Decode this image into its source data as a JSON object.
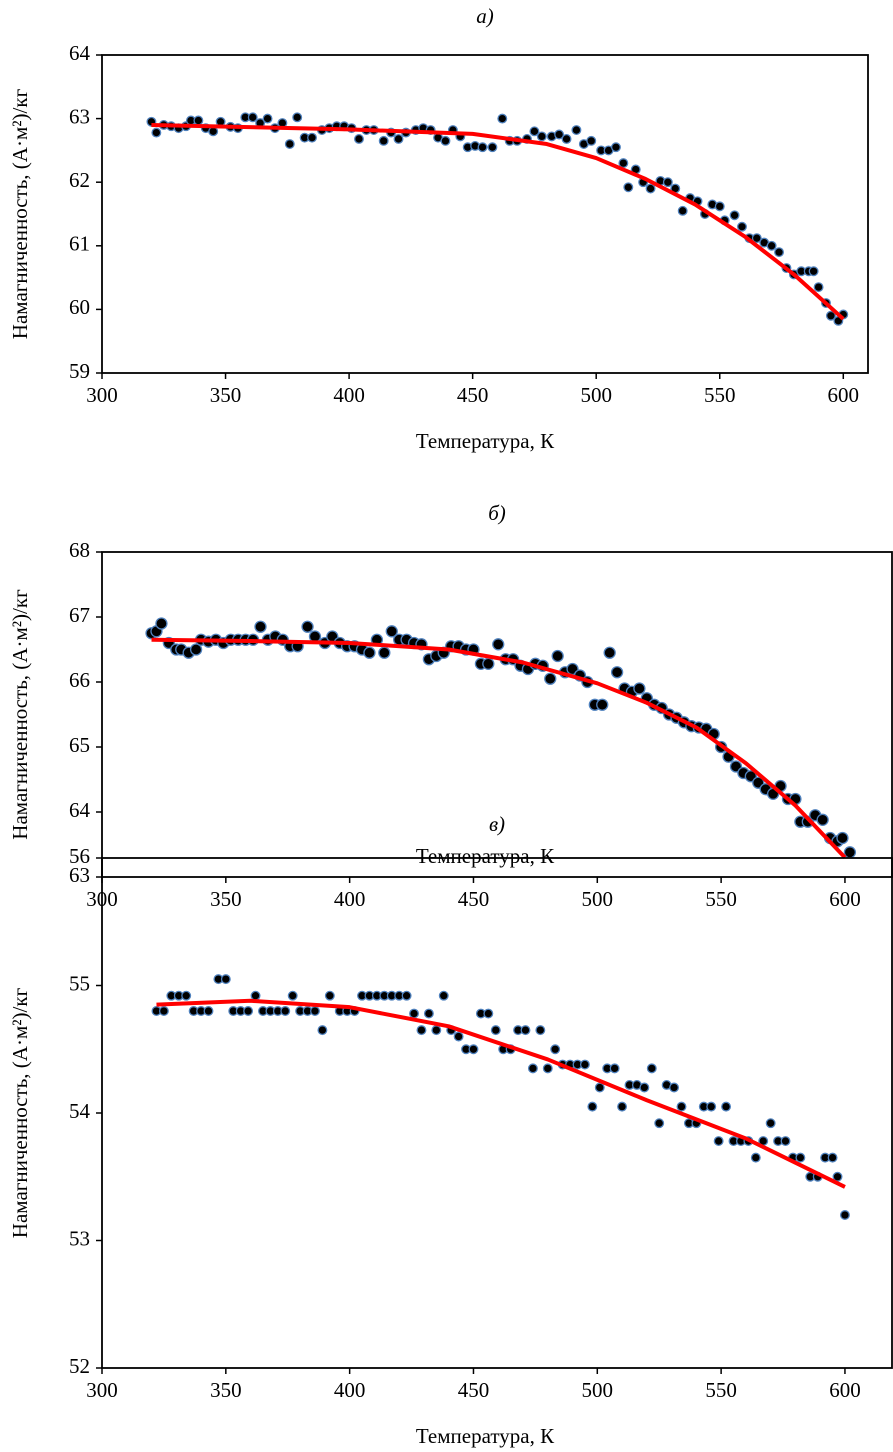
{
  "chart_data": [
    {
      "type": "scatter",
      "title": "а)",
      "xlabel": "Температура, К",
      "ylabel": "Намагниченность, (А·м²)/кг",
      "xlim": [
        300,
        610
      ],
      "xticks": [
        300,
        350,
        400,
        450,
        500,
        550,
        600
      ],
      "ylim": [
        59,
        64
      ],
      "yticks": [
        59,
        60,
        61,
        62,
        63,
        64
      ],
      "grid": false,
      "series": [
        {
          "mode": "markers",
          "color": "#000000",
          "edgecolor": "#4f81bd",
          "x": [
            320,
            322,
            325,
            328,
            331,
            334,
            336,
            339,
            342,
            345,
            348,
            352,
            355,
            358,
            361,
            364,
            367,
            370,
            373,
            376,
            379,
            382,
            385,
            389,
            392,
            395,
            398,
            401,
            404,
            407,
            410,
            414,
            417,
            420,
            423,
            427,
            430,
            433,
            436,
            439,
            442,
            445,
            448,
            451,
            454,
            458,
            462,
            465,
            468,
            472,
            475,
            478,
            482,
            485,
            488,
            492,
            495,
            498,
            502,
            505,
            508,
            511,
            513,
            516,
            519,
            522,
            526,
            529,
            532,
            535,
            538,
            541,
            544,
            547,
            550,
            552,
            556,
            559,
            562,
            565,
            568,
            571,
            574,
            577,
            580,
            583,
            586,
            588,
            590,
            593,
            595,
            598,
            600
          ],
          "values": [
            62.95,
            62.78,
            62.9,
            62.88,
            62.85,
            62.88,
            62.97,
            62.97,
            62.85,
            62.8,
            62.95,
            62.87,
            62.85,
            63.02,
            63.02,
            62.93,
            63.0,
            62.85,
            62.93,
            62.6,
            63.02,
            62.7,
            62.7,
            62.82,
            62.85,
            62.88,
            62.88,
            62.85,
            62.68,
            62.82,
            62.82,
            62.65,
            62.78,
            62.68,
            62.78,
            62.82,
            62.85,
            62.82,
            62.7,
            62.65,
            62.82,
            62.72,
            62.55,
            62.57,
            62.55,
            62.55,
            63.0,
            62.65,
            62.65,
            62.68,
            62.8,
            62.72,
            62.72,
            62.75,
            62.68,
            62.82,
            62.6,
            62.65,
            62.5,
            62.5,
            62.55,
            62.3,
            61.92,
            62.2,
            62.0,
            61.9,
            62.02,
            62.0,
            61.9,
            61.55,
            61.75,
            61.7,
            61.5,
            61.65,
            61.62,
            61.4,
            61.48,
            61.3,
            61.12,
            61.12,
            61.05,
            61.0,
            60.9,
            60.65,
            60.55,
            60.6,
            60.6,
            60.6,
            60.35,
            60.1,
            59.9,
            59.82,
            59.92
          ]
        },
        {
          "mode": "line",
          "color": "#ff0000",
          "x": [
            320,
            400,
            450,
            480,
            500,
            520,
            540,
            560,
            580,
            600
          ],
          "values": [
            62.9,
            62.83,
            62.76,
            62.6,
            62.38,
            62.05,
            61.65,
            61.15,
            60.55,
            59.85
          ]
        }
      ]
    },
    {
      "type": "scatter",
      "title": "б)",
      "xlabel": "Температура, К",
      "ylabel": "Намагниченность, (А·м²)/кг",
      "xlim": [
        300,
        619
      ],
      "xticks": [
        300,
        350,
        400,
        450,
        500,
        550,
        600
      ],
      "ylim": [
        63,
        68
      ],
      "yticks": [
        63,
        64,
        65,
        66,
        67,
        68
      ],
      "grid": false,
      "series": [
        {
          "mode": "markers",
          "color": "#000000",
          "edgecolor": "#4f81bd",
          "x": [
            320,
            322,
            324,
            327,
            330,
            332,
            335,
            338,
            340,
            343,
            346,
            349,
            352,
            355,
            358,
            361,
            364,
            367,
            370,
            373,
            376,
            379,
            383,
            386,
            390,
            393,
            396,
            399,
            402,
            405,
            408,
            411,
            414,
            417,
            420,
            423,
            426,
            429,
            432,
            435,
            438,
            441,
            444,
            447,
            450,
            453,
            456,
            460,
            463,
            466,
            469,
            472,
            475,
            478,
            481,
            484,
            487,
            490,
            493,
            496,
            499,
            502,
            505,
            508,
            511,
            514,
            517,
            520,
            523,
            526,
            529,
            532,
            535,
            538,
            541,
            544,
            547,
            550,
            553,
            556,
            559,
            562,
            565,
            568,
            571,
            574,
            577,
            580,
            582,
            585,
            588,
            591,
            594,
            597,
            599,
            602
          ],
          "values": [
            66.75,
            66.78,
            66.9,
            66.6,
            66.5,
            66.5,
            66.45,
            66.5,
            66.65,
            66.62,
            66.65,
            66.6,
            66.65,
            66.65,
            66.65,
            66.65,
            66.85,
            66.65,
            66.7,
            66.65,
            66.55,
            66.55,
            66.85,
            66.7,
            66.6,
            66.7,
            66.6,
            66.55,
            66.55,
            66.5,
            66.45,
            66.65,
            66.45,
            66.78,
            66.65,
            66.65,
            66.6,
            66.58,
            66.35,
            66.4,
            66.45,
            66.55,
            66.55,
            66.5,
            66.5,
            66.28,
            66.28,
            66.58,
            66.35,
            66.35,
            66.25,
            66.2,
            66.28,
            66.25,
            66.05,
            66.4,
            66.15,
            66.2,
            66.1,
            66.0,
            65.65,
            65.65,
            66.45,
            66.15,
            65.9,
            65.85,
            65.9,
            65.75,
            65.65,
            65.6,
            65.5,
            65.45,
            65.38,
            65.32,
            65.3,
            65.28,
            65.2,
            65.0,
            64.85,
            64.7,
            64.6,
            64.55,
            64.45,
            64.35,
            64.28,
            64.4,
            64.2,
            64.2,
            63.85,
            63.85,
            63.95,
            63.88,
            63.6,
            63.55,
            63.6,
            63.38
          ]
        },
        {
          "mode": "line",
          "color": "#ff0000",
          "x": [
            320,
            360,
            400,
            440,
            470,
            500,
            520,
            540,
            560,
            580,
            600
          ],
          "values": [
            66.65,
            66.63,
            66.6,
            66.5,
            66.3,
            65.98,
            65.68,
            65.3,
            64.75,
            64.1,
            63.3
          ]
        }
      ]
    },
    {
      "type": "scatter",
      "title": "в)",
      "xlabel": "Температура, К",
      "ylabel": "Намагниченность, (А·м²)/кг",
      "xlim": [
        300,
        619
      ],
      "xticks": [
        300,
        350,
        400,
        450,
        500,
        550,
        600
      ],
      "ylim": [
        52,
        56
      ],
      "yticks": [
        52,
        53,
        54,
        55,
        56
      ],
      "grid": false,
      "series": [
        {
          "mode": "markers",
          "color": "#000000",
          "edgecolor": "#4f81bd",
          "x": [
            322,
            325,
            328,
            331,
            334,
            337,
            340,
            343,
            347,
            350,
            353,
            356,
            359,
            362,
            365,
            368,
            371,
            374,
            377,
            380,
            383,
            386,
            389,
            392,
            396,
            399,
            402,
            405,
            408,
            411,
            414,
            417,
            420,
            423,
            426,
            429,
            432,
            435,
            438,
            441,
            444,
            447,
            450,
            453,
            456,
            459,
            462,
            465,
            468,
            471,
            474,
            477,
            480,
            483,
            486,
            489,
            492,
            495,
            498,
            501,
            504,
            507,
            510,
            513,
            516,
            519,
            522,
            525,
            528,
            531,
            534,
            537,
            540,
            543,
            546,
            549,
            552,
            555,
            558,
            561,
            564,
            567,
            570,
            573,
            576,
            579,
            582,
            586,
            589,
            592,
            595,
            597,
            600
          ],
          "values": [
            54.8,
            54.8,
            54.92,
            54.92,
            54.92,
            54.8,
            54.8,
            54.8,
            55.05,
            55.05,
            54.8,
            54.8,
            54.8,
            54.92,
            54.8,
            54.8,
            54.8,
            54.8,
            54.92,
            54.8,
            54.8,
            54.8,
            54.65,
            54.92,
            54.8,
            54.8,
            54.8,
            54.92,
            54.92,
            54.92,
            54.92,
            54.92,
            54.92,
            54.92,
            54.78,
            54.65,
            54.78,
            54.65,
            54.92,
            54.65,
            54.6,
            54.5,
            54.5,
            54.78,
            54.78,
            54.65,
            54.5,
            54.5,
            54.65,
            54.65,
            54.35,
            54.65,
            54.35,
            54.5,
            54.38,
            54.38,
            54.38,
            54.38,
            54.05,
            54.2,
            54.35,
            54.35,
            54.05,
            54.22,
            54.22,
            54.2,
            54.35,
            53.92,
            54.22,
            54.2,
            54.05,
            53.92,
            53.92,
            54.05,
            54.05,
            53.78,
            54.05,
            53.78,
            53.78,
            53.78,
            53.65,
            53.78,
            53.92,
            53.78,
            53.78,
            53.65,
            53.65,
            53.5,
            53.5,
            53.65,
            53.65,
            53.5,
            53.2
          ]
        },
        {
          "mode": "line",
          "color": "#ff0000",
          "x": [
            322,
            360,
            400,
            440,
            480,
            520,
            560,
            600
          ],
          "values": [
            54.85,
            54.88,
            54.83,
            54.68,
            54.42,
            54.1,
            53.8,
            53.42
          ]
        }
      ]
    }
  ]
}
